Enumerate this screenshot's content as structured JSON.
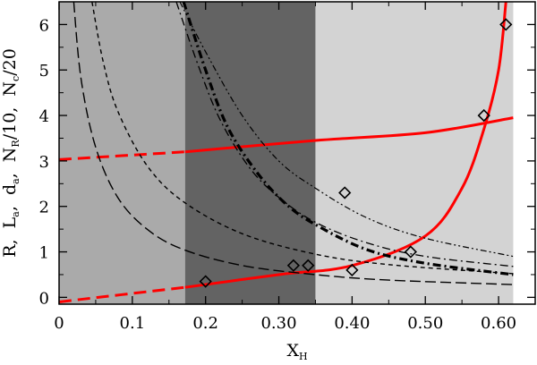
{
  "chart_data": {
    "type": "line",
    "title": "",
    "xlabel": "X",
    "xlabel_sub": "H",
    "ylabel_parts": [
      {
        "text": "R,  L"
      },
      {
        "text": "a",
        "sub": true
      },
      {
        "text": ",  d"
      },
      {
        "text": "a",
        "sub": true
      },
      {
        "text": ",  N"
      },
      {
        "text": "R",
        "sub": true
      },
      {
        "text": "/10,  N"
      },
      {
        "text": "c",
        "sub": true
      },
      {
        "text": "/20"
      }
    ],
    "xlim": [
      0,
      0.65
    ],
    "ylim": [
      -0.15,
      6.5
    ],
    "x_ticks": [
      0,
      0.1,
      0.2,
      0.3,
      0.4,
      0.5,
      0.6
    ],
    "x_tick_labels": [
      "0",
      "0.1",
      "0.2",
      "0.30",
      "0.40",
      "0.50",
      "0.60"
    ],
    "y_ticks": [
      0,
      1,
      2,
      3,
      4,
      5,
      6
    ],
    "y_tick_labels": [
      "0",
      "1",
      "2",
      "3",
      "4",
      "5",
      "6"
    ],
    "shaded_regions": [
      {
        "name": "low-xh-region",
        "x": [
          0,
          0.172
        ],
        "color": "#aaaaaa"
      },
      {
        "name": "middle-xh-region",
        "x": [
          0.172,
          0.35
        ],
        "color": "#636363"
      },
      {
        "name": "high-xh-region",
        "x": [
          0.35,
          0.62
        ],
        "color": "#d3d3d3"
      }
    ],
    "series": [
      {
        "name": "R-upper",
        "color": "#ff0000",
        "style": "solid-dashed",
        "x": [
          0,
          0.172,
          0.35,
          0.5,
          0.62
        ],
        "values": [
          3.03,
          3.2,
          3.45,
          3.62,
          3.95
        ],
        "solid_from": 0.172
      },
      {
        "name": "R-lower",
        "color": "#ff0000",
        "style": "solid-dashed",
        "x": [
          0,
          0.172,
          0.3,
          0.4,
          0.5,
          0.55,
          0.58,
          0.6,
          0.61
        ],
        "values": [
          -0.1,
          0.22,
          0.5,
          0.7,
          1.35,
          2.4,
          3.7,
          5.0,
          6.5
        ],
        "solid_from": 0.172
      },
      {
        "name": "La-long-dashed",
        "color": "#000000",
        "style": "long-dash",
        "x": [
          0.02,
          0.03,
          0.05,
          0.08,
          0.12,
          0.17,
          0.25,
          0.35,
          0.45,
          0.62
        ],
        "values": [
          6.5,
          4.8,
          3.3,
          2.2,
          1.5,
          1.05,
          0.7,
          0.5,
          0.38,
          0.28
        ]
      },
      {
        "name": "da-short-dashed",
        "color": "#000000",
        "style": "short-dash",
        "x": [
          0.045,
          0.06,
          0.08,
          0.12,
          0.17,
          0.25,
          0.35,
          0.45,
          0.62
        ],
        "values": [
          6.5,
          5.2,
          4.1,
          2.9,
          2.1,
          1.4,
          0.95,
          0.72,
          0.52
        ]
      },
      {
        "name": "NR-dash-dot",
        "color": "#000000",
        "style": "dash-dot",
        "x": [
          0.16,
          0.19,
          0.22,
          0.26,
          0.3,
          0.35,
          0.42,
          0.5,
          0.62
        ],
        "values": [
          6.5,
          5.1,
          3.9,
          2.85,
          2.2,
          1.65,
          1.2,
          0.9,
          0.68
        ]
      },
      {
        "name": "NR-thick-dash-dot",
        "color": "#000000",
        "style": "thick-dash-dot",
        "x": [
          0.17,
          0.2,
          0.23,
          0.27,
          0.31,
          0.35,
          0.42,
          0.5,
          0.62
        ],
        "values": [
          6.5,
          5.0,
          3.75,
          2.75,
          2.05,
          1.6,
          1.05,
          0.75,
          0.5
        ]
      },
      {
        "name": "Nc-dash-dot-dot",
        "color": "#000000",
        "style": "dash-dot-dot",
        "x": [
          0.165,
          0.2,
          0.25,
          0.3,
          0.35,
          0.42,
          0.5,
          0.62
        ],
        "values": [
          6.5,
          5.4,
          4.0,
          3.0,
          2.4,
          1.75,
          1.3,
          0.9
        ]
      }
    ],
    "points": {
      "name": "Nc/20 diamonds",
      "x": [
        0.2,
        0.32,
        0.34,
        0.39,
        0.4,
        0.48,
        0.58,
        0.61
      ],
      "y": [
        0.35,
        0.7,
        0.7,
        2.3,
        0.6,
        1.0,
        4.0,
        6.0
      ]
    }
  }
}
